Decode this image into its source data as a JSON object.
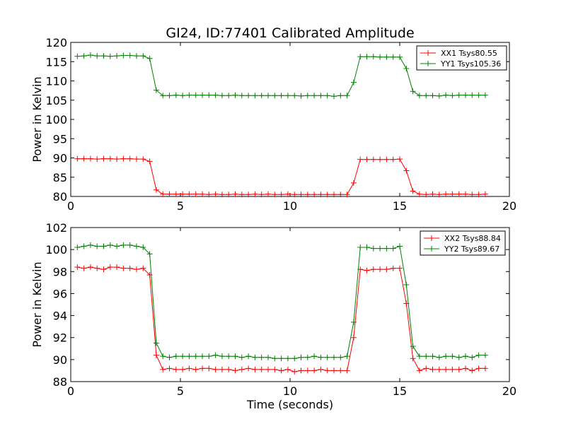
{
  "title": "GI24, ID:77401 Calibrated Amplitude",
  "chart_data": [
    {
      "type": "line",
      "title": "GI24, ID:77401 Calibrated Amplitude",
      "xlabel": "",
      "ylabel": "Power in Kelvin",
      "xlim": [
        0,
        20
      ],
      "ylim": [
        80,
        120
      ],
      "xticks": [
        "0",
        "5",
        "10",
        "15",
        "20"
      ],
      "yticks": [
        "80",
        "85",
        "90",
        "95",
        "100",
        "105",
        "110",
        "115",
        "120"
      ],
      "legend_position": "top-right",
      "x": [
        0.3,
        0.6,
        0.9,
        1.2,
        1.5,
        1.8,
        2.1,
        2.4,
        2.7,
        3.0,
        3.3,
        3.6,
        3.9,
        4.2,
        4.5,
        4.8,
        5.1,
        5.4,
        5.7,
        6.0,
        6.3,
        6.6,
        6.9,
        7.2,
        7.5,
        7.8,
        8.1,
        8.4,
        8.7,
        9.0,
        9.3,
        9.6,
        9.9,
        10.2,
        10.5,
        10.8,
        11.1,
        11.4,
        11.7,
        12.0,
        12.3,
        12.6,
        12.9,
        13.2,
        13.5,
        13.8,
        14.1,
        14.4,
        14.7,
        15.0,
        15.3,
        15.6,
        15.9,
        16.2,
        16.5,
        16.8,
        17.1,
        17.4,
        17.7,
        18.0,
        18.3,
        18.6,
        18.9
      ],
      "series": [
        {
          "name": "XX1 Tsys80.55",
          "color": "#ff0000",
          "values": [
            89.8,
            89.8,
            89.8,
            89.7,
            89.8,
            89.8,
            89.7,
            89.8,
            89.8,
            89.7,
            89.7,
            89.1,
            81.7,
            80.6,
            80.6,
            80.6,
            80.6,
            80.6,
            80.6,
            80.6,
            80.5,
            80.6,
            80.5,
            80.5,
            80.6,
            80.5,
            80.5,
            80.6,
            80.5,
            80.6,
            80.5,
            80.5,
            80.6,
            80.5,
            80.5,
            80.5,
            80.5,
            80.5,
            80.5,
            80.5,
            80.5,
            80.5,
            83.5,
            89.6,
            89.6,
            89.6,
            89.6,
            89.6,
            89.6,
            89.7,
            86.7,
            81.4,
            80.6,
            80.5,
            80.6,
            80.5,
            80.6,
            80.6,
            80.6,
            80.6,
            80.5,
            80.5,
            80.6
          ]
        },
        {
          "name": "YY1 Tsys105.36",
          "color": "#008000",
          "values": [
            116.4,
            116.5,
            116.7,
            116.5,
            116.5,
            116.4,
            116.5,
            116.6,
            116.6,
            116.5,
            116.5,
            115.8,
            107.6,
            106.2,
            106.2,
            106.3,
            106.2,
            106.3,
            106.3,
            106.3,
            106.3,
            106.3,
            106.2,
            106.2,
            106.3,
            106.2,
            106.2,
            106.2,
            106.2,
            106.2,
            106.2,
            106.2,
            106.2,
            106.2,
            106.1,
            106.2,
            106.2,
            106.2,
            106.2,
            106.0,
            106.2,
            106.2,
            109.6,
            116.3,
            116.3,
            116.3,
            116.2,
            116.2,
            116.2,
            116.2,
            113.2,
            107.3,
            106.2,
            106.2,
            106.2,
            106.1,
            106.3,
            106.2,
            106.3,
            106.3,
            106.3,
            106.3,
            106.3
          ]
        }
      ]
    },
    {
      "type": "line",
      "title": "",
      "xlabel": "Time (seconds)",
      "ylabel": "Power in Kelvin",
      "xlim": [
        0,
        20
      ],
      "ylim": [
        88,
        102
      ],
      "xticks": [
        "0",
        "5",
        "10",
        "15",
        "20"
      ],
      "yticks": [
        "88",
        "90",
        "92",
        "94",
        "96",
        "98",
        "100",
        "102"
      ],
      "legend_position": "top-right",
      "x": [
        0.3,
        0.6,
        0.9,
        1.2,
        1.5,
        1.8,
        2.1,
        2.4,
        2.7,
        3.0,
        3.3,
        3.6,
        3.9,
        4.2,
        4.5,
        4.8,
        5.1,
        5.4,
        5.7,
        6.0,
        6.3,
        6.6,
        6.9,
        7.2,
        7.5,
        7.8,
        8.1,
        8.4,
        8.7,
        9.0,
        9.3,
        9.6,
        9.9,
        10.2,
        10.5,
        10.8,
        11.1,
        11.4,
        11.7,
        12.0,
        12.3,
        12.6,
        12.9,
        13.2,
        13.5,
        13.8,
        14.1,
        14.4,
        14.7,
        15.0,
        15.3,
        15.6,
        15.9,
        16.2,
        16.5,
        16.8,
        17.1,
        17.4,
        17.7,
        18.0,
        18.3,
        18.6,
        18.9
      ],
      "series": [
        {
          "name": "XX2 Tsys88.84",
          "color": "#ff0000",
          "values": [
            98.4,
            98.3,
            98.4,
            98.3,
            98.2,
            98.4,
            98.4,
            98.3,
            98.3,
            98.2,
            98.3,
            97.7,
            90.4,
            89.1,
            89.2,
            89.1,
            89.1,
            89.2,
            89.1,
            89.2,
            89.2,
            89.1,
            89.1,
            89.1,
            89.0,
            89.1,
            89.2,
            89.1,
            89.1,
            89.1,
            89.1,
            89.0,
            89.1,
            88.9,
            89.0,
            89.0,
            89.0,
            89.1,
            89.0,
            89.0,
            89.0,
            89.0,
            92.0,
            98.2,
            98.1,
            98.2,
            98.2,
            98.2,
            98.3,
            98.3,
            95.1,
            90.1,
            89.0,
            89.2,
            89.1,
            89.1,
            89.1,
            89.1,
            89.1,
            89.2,
            89.0,
            89.2,
            89.2
          ]
        },
        {
          "name": "YY2 Tsys89.67",
          "color": "#008000",
          "values": [
            100.2,
            100.3,
            100.4,
            100.3,
            100.3,
            100.4,
            100.3,
            100.4,
            100.4,
            100.3,
            100.2,
            99.6,
            91.5,
            90.3,
            90.2,
            90.3,
            90.3,
            90.3,
            90.3,
            90.3,
            90.3,
            90.4,
            90.3,
            90.3,
            90.3,
            90.2,
            90.3,
            90.2,
            90.2,
            90.2,
            90.1,
            90.1,
            90.1,
            90.1,
            90.2,
            90.2,
            90.3,
            90.2,
            90.2,
            90.2,
            90.2,
            90.3,
            93.4,
            100.2,
            100.2,
            100.1,
            100.1,
            100.1,
            100.1,
            100.3,
            96.8,
            91.2,
            90.3,
            90.3,
            90.3,
            90.2,
            90.3,
            90.3,
            90.2,
            90.3,
            90.2,
            90.4,
            90.4
          ]
        }
      ]
    }
  ]
}
